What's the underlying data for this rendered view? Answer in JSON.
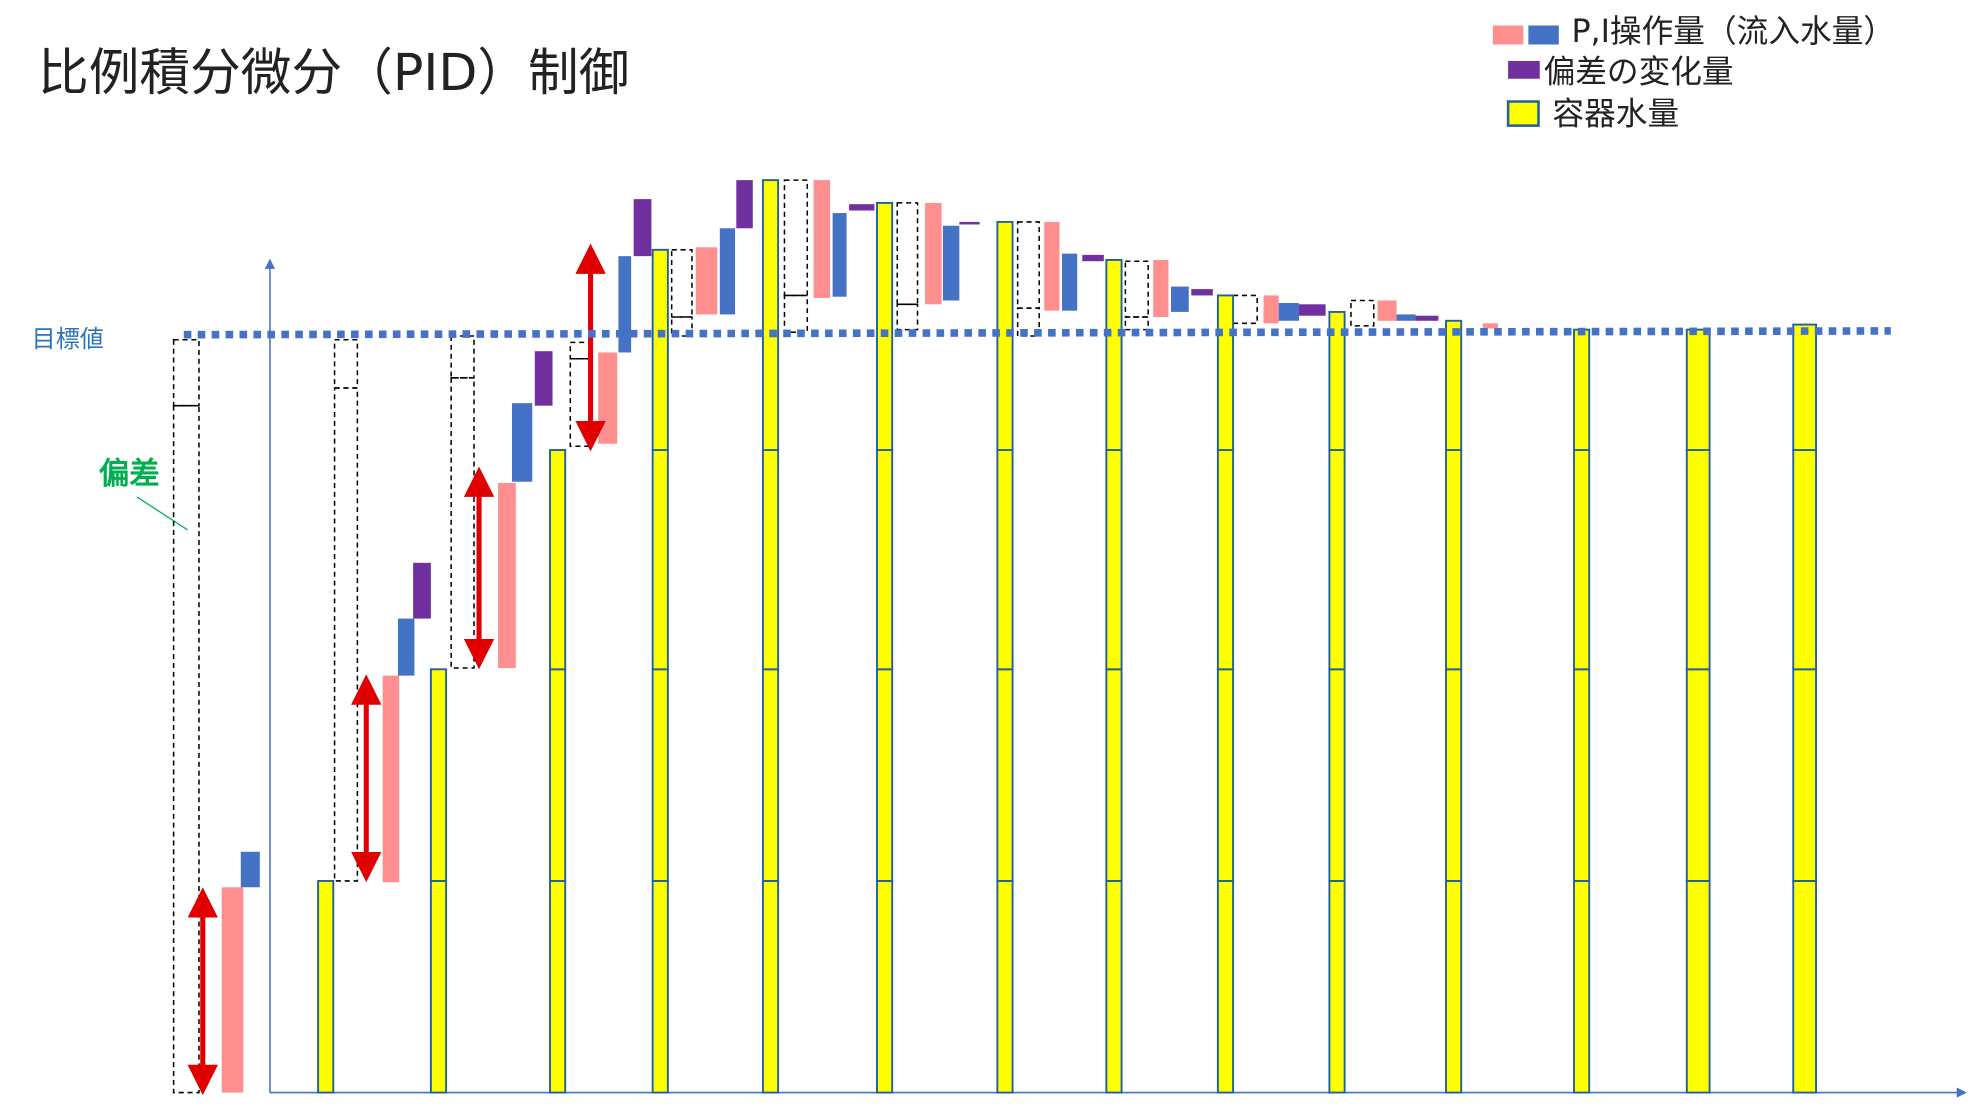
{
  "header": {
    "title": "比例積分微分（PID）制御"
  },
  "legend": [
    {
      "label": "P,I操作量（流入水量）"
    },
    {
      "label": "偏差の変化量"
    },
    {
      "label": "容器水量"
    }
  ],
  "annotations": {
    "target": "目標値",
    "deviation": "偏差"
  }
}
